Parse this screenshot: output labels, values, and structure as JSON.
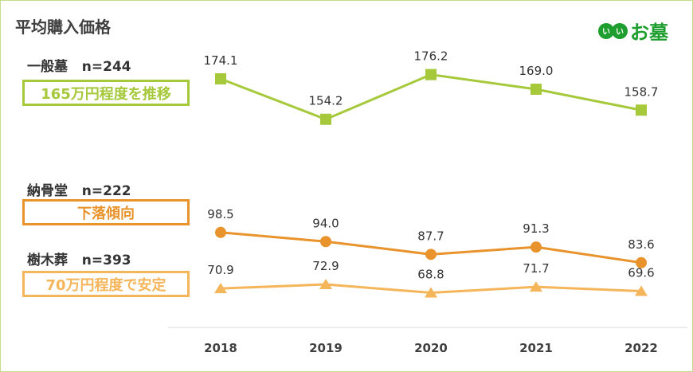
{
  "title": "平均購入価格",
  "logo": {
    "mark": "いい",
    "text": "お墓",
    "color": "#1e9e2e"
  },
  "chart_data": {
    "type": "line",
    "categories": [
      "2018",
      "2019",
      "2020",
      "2021",
      "2022"
    ],
    "series": [
      {
        "name": "一般墓",
        "n_label": "n=244",
        "note": "165万円程度を推移",
        "color": "#a6c93b",
        "marker": "square",
        "values": [
          174.1,
          154.2,
          176.2,
          169.0,
          158.7
        ]
      },
      {
        "name": "納骨堂",
        "n_label": "n=222",
        "note": "下落傾向",
        "color": "#e8932b",
        "marker": "circle",
        "values": [
          98.5,
          94.0,
          87.7,
          91.3,
          83.6
        ]
      },
      {
        "name": "樹木葬",
        "n_label": "n=393",
        "note": "70万円程度で安定",
        "color": "#f5b55a",
        "marker": "triangle",
        "values": [
          70.9,
          72.9,
          68.8,
          71.7,
          69.6
        ]
      }
    ],
    "grid": false
  }
}
